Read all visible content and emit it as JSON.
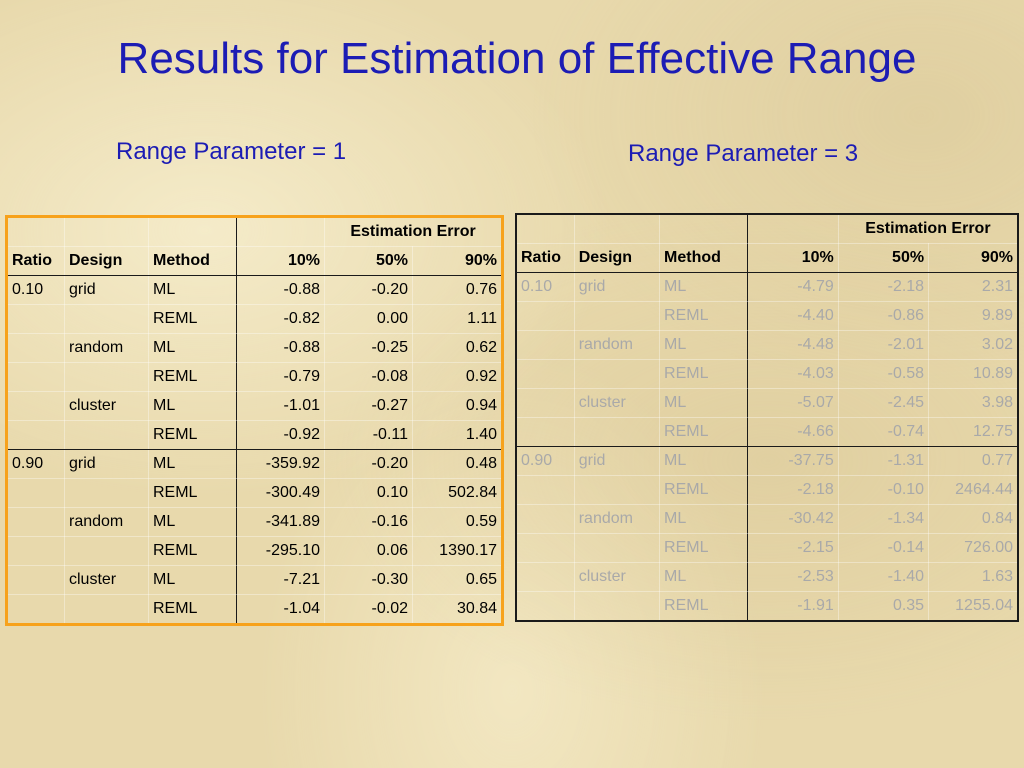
{
  "title": "Results for Estimation of Effective Range",
  "tables": [
    {
      "subtitle": "Range Parameter = 1",
      "group_header": "Estimation Error",
      "columns": [
        "Ratio",
        "Design",
        "Method",
        "10%",
        "50%",
        "90%"
      ],
      "rows": [
        [
          "0.10",
          "grid",
          "ML",
          "-0.88",
          "-0.20",
          "0.76"
        ],
        [
          "",
          "",
          "REML",
          "-0.82",
          "0.00",
          "1.11"
        ],
        [
          "",
          "random",
          "ML",
          "-0.88",
          "-0.25",
          "0.62"
        ],
        [
          "",
          "",
          "REML",
          "-0.79",
          "-0.08",
          "0.92"
        ],
        [
          "",
          "cluster",
          "ML",
          "-1.01",
          "-0.27",
          "0.94"
        ],
        [
          "",
          "",
          "REML",
          "-0.92",
          "-0.11",
          "1.40"
        ],
        [
          "0.90",
          "grid",
          "ML",
          "-359.92",
          "-0.20",
          "0.48"
        ],
        [
          "",
          "",
          "REML",
          "-300.49",
          "0.10",
          "502.84"
        ],
        [
          "",
          "random",
          "ML",
          "-341.89",
          "-0.16",
          "0.59"
        ],
        [
          "",
          "",
          "REML",
          "-295.10",
          "0.06",
          "1390.17"
        ],
        [
          "",
          "cluster",
          "ML",
          "-7.21",
          "-0.30",
          "0.65"
        ],
        [
          "",
          "",
          "REML",
          "-1.04",
          "-0.02",
          "30.84"
        ]
      ]
    },
    {
      "subtitle": "Range Parameter = 3",
      "group_header": "Estimation Error",
      "columns": [
        "Ratio",
        "Design",
        "Method",
        "10%",
        "50%",
        "90%"
      ],
      "rows": [
        [
          "0.10",
          "grid",
          "ML",
          "-4.79",
          "-2.18",
          "2.31"
        ],
        [
          "",
          "",
          "REML",
          "-4.40",
          "-0.86",
          "9.89"
        ],
        [
          "",
          "random",
          "ML",
          "-4.48",
          "-2.01",
          "3.02"
        ],
        [
          "",
          "",
          "REML",
          "-4.03",
          "-0.58",
          "10.89"
        ],
        [
          "",
          "cluster",
          "ML",
          "-5.07",
          "-2.45",
          "3.98"
        ],
        [
          "",
          "",
          "REML",
          "-4.66",
          "-0.74",
          "12.75"
        ],
        [
          "0.90",
          "grid",
          "ML",
          "-37.75",
          "-1.31",
          "0.77"
        ],
        [
          "",
          "",
          "REML",
          "-2.18",
          "-0.10",
          "2464.44"
        ],
        [
          "",
          "random",
          "ML",
          "-30.42",
          "-1.34",
          "0.84"
        ],
        [
          "",
          "",
          "REML",
          "-2.15",
          "-0.14",
          "726.00"
        ],
        [
          "",
          "cluster",
          "ML",
          "-2.53",
          "-1.40",
          "1.63"
        ],
        [
          "",
          "",
          "REML",
          "-1.91",
          "0.35",
          "1255.04"
        ]
      ]
    }
  ]
}
